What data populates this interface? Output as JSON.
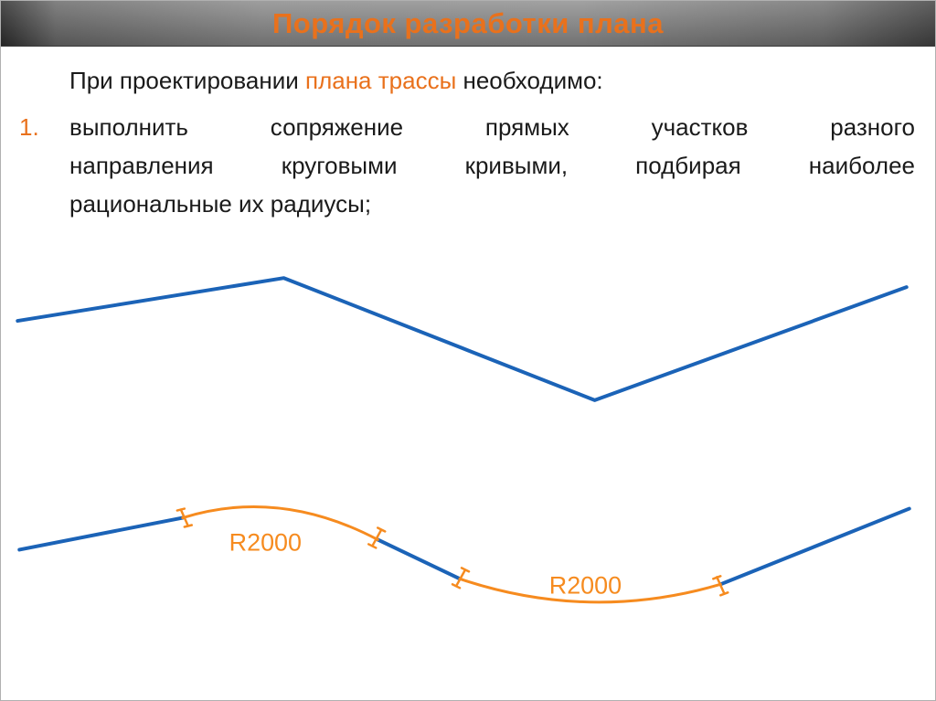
{
  "slide": {
    "title": "Порядок разработки плана",
    "intro": {
      "pre": "При проектировании ",
      "highlight": "плана трассы",
      "post": " необходимо:"
    },
    "list": [
      {
        "number": "1.",
        "lines": [
          "выполнить сопряжение прямых участков разного",
          "направления круговыми кривыми, подбирая наиболее",
          "рациональные их радиусы;"
        ]
      }
    ]
  },
  "colors": {
    "accent_orange": "#e9711c",
    "line_blue": "#1b63b7",
    "arc_orange": "#f68b1f"
  },
  "diagrams": {
    "zigzag_points": "18,351 310,304 651,438 993,314",
    "plan": {
      "blue_segments": [
        "20,602 199,567",
        "413,591 503,634",
        "789,640 996,557"
      ],
      "arcs": [
        "M 199 567 Q 305 534 413 591",
        "M 503 634 Q 646 682 789 640"
      ],
      "ticks": [
        "M197 558 L205 576 M193 559 L201 557 M201 577 L209 575",
        "M417 580 L407 598 M413 578 L421 582 M403 596 L411 600",
        "M509 624 L499 642 M505 622 L513 626 M495 640 L503 644",
        "M785 632 L793 650 M781 634 L789 631 M789 652 L797 649"
      ],
      "labels": [
        {
          "text": "R2000"
        },
        {
          "text": "R2000"
        }
      ]
    }
  }
}
